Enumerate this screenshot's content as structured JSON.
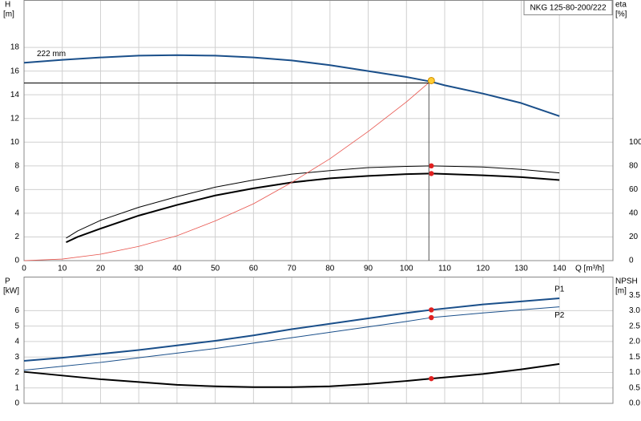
{
  "chart_data": [
    {
      "type": "line",
      "title": "NKG 125-80-200/222",
      "y_label": "H",
      "y_unit": "[m]",
      "y2_label": "eta",
      "y2_unit": "[%]",
      "x_label": "Q [m³/h]",
      "xlim": [
        0,
        154
      ],
      "xticks": [
        0,
        10,
        20,
        30,
        40,
        50,
        60,
        70,
        80,
        90,
        100,
        110,
        120,
        130,
        140
      ],
      "ylim": [
        0,
        22
      ],
      "yticks": [
        0,
        2,
        4,
        6,
        8,
        10,
        12,
        14,
        16,
        18
      ],
      "y2lim": [
        0,
        220
      ],
      "y2ticks": [
        0,
        20,
        40,
        60,
        80,
        100
      ],
      "grid": true,
      "series": [
        {
          "name": "222 mm",
          "color": "#1a4f8a",
          "width": 2,
          "label_at": "start",
          "label_side": "above",
          "x": [
            0,
            10,
            20,
            30,
            40,
            50,
            60,
            70,
            80,
            90,
            100,
            106.5,
            110,
            120,
            130,
            140
          ],
          "values": [
            16.7,
            16.95,
            17.15,
            17.3,
            17.35,
            17.3,
            17.15,
            16.9,
            16.5,
            16.0,
            15.5,
            15.1,
            14.8,
            14.1,
            13.3,
            12.2
          ]
        },
        {
          "color": "#000000",
          "width": 1,
          "axis": "y2",
          "x": [
            11,
            14,
            20,
            30,
            40,
            50,
            60,
            70,
            80,
            90,
            100,
            106.5,
            120,
            130,
            140
          ],
          "values": [
            19,
            25,
            34,
            45,
            54,
            62,
            68,
            73,
            76,
            78.5,
            79.5,
            80,
            79,
            77,
            74
          ]
        },
        {
          "color": "#000000",
          "width": 2,
          "axis": "y2",
          "x": [
            11,
            14,
            20,
            30,
            40,
            50,
            60,
            70,
            80,
            90,
            100,
            106.5,
            120,
            130,
            140
          ],
          "values": [
            15.5,
            20,
            27,
            38,
            47,
            55,
            61,
            66,
            69.5,
            71.5,
            73,
            73.5,
            72,
            70.5,
            68
          ]
        },
        {
          "color": "#e8554e",
          "width": 0.8,
          "x": [
            0,
            10,
            20,
            30,
            40,
            50,
            60,
            70,
            80,
            90,
            100,
            106.5
          ],
          "values": [
            0,
            0.13,
            0.54,
            1.2,
            2.1,
            3.35,
            4.8,
            6.6,
            8.6,
            10.9,
            13.4,
            15.2
          ]
        },
        {
          "color": "#e02020",
          "marker": true,
          "axis": "y2",
          "x": [
            106.5
          ],
          "values": [
            80
          ]
        },
        {
          "color": "#e02020",
          "marker": true,
          "axis": "y2",
          "x": [
            106.5
          ],
          "values": [
            73.5
          ]
        },
        {
          "color": "#ffcc33",
          "marker": true,
          "duty_point": true,
          "x": [
            106.5
          ],
          "values": [
            15.2
          ]
        }
      ]
    },
    {
      "type": "line",
      "y_label": "P",
      "y_unit": "[kW]",
      "y2_label": "NPSH",
      "y2_unit": "[m]",
      "xlim": [
        0,
        154
      ],
      "ylim": [
        0,
        8.2
      ],
      "yticks": [
        0,
        1,
        2,
        3,
        4,
        5,
        6
      ],
      "y2lim": [
        0,
        4.1
      ],
      "y2ticks": [
        {
          "value": 0,
          "label": "0.0"
        },
        0.5,
        {
          "value": 1,
          "label": "1.0"
        },
        1.5,
        {
          "value": 2,
          "label": "2.0"
        },
        2.5,
        {
          "value": 3,
          "label": "3.0"
        },
        3.5
      ],
      "grid": true,
      "series": [
        {
          "name": "P1",
          "color": "#1a4f8a",
          "width": 2,
          "label_at": "end",
          "label_side": "above",
          "x": [
            0,
            10,
            20,
            30,
            40,
            50,
            60,
            70,
            80,
            90,
            100,
            106.5,
            120,
            130,
            140
          ],
          "values": [
            2.75,
            2.95,
            3.2,
            3.45,
            3.75,
            4.05,
            4.4,
            4.8,
            5.15,
            5.5,
            5.85,
            6.05,
            6.4,
            6.6,
            6.8
          ]
        },
        {
          "name": "P2",
          "color": "#1a4f8a",
          "width": 1,
          "label_at": "end",
          "label_side": "below",
          "x": [
            0,
            10,
            20,
            30,
            40,
            50,
            60,
            70,
            80,
            90,
            100,
            106.5,
            120,
            130,
            140
          ],
          "values": [
            2.15,
            2.4,
            2.65,
            2.95,
            3.25,
            3.55,
            3.9,
            4.25,
            4.6,
            4.95,
            5.3,
            5.55,
            5.85,
            6.05,
            6.25
          ]
        },
        {
          "color": "#000000",
          "width": 2,
          "axis": "y2",
          "x": [
            0,
            20,
            40,
            50,
            60,
            70,
            80,
            90,
            100,
            106.5,
            120,
            130,
            140
          ],
          "values": [
            1.02,
            0.78,
            0.6,
            0.55,
            0.525,
            0.525,
            0.55,
            0.625,
            0.725,
            0.8,
            0.95,
            1.1,
            1.275
          ]
        },
        {
          "color": "#e02020",
          "marker": true,
          "x": [
            106.5
          ],
          "values": [
            6.05
          ]
        },
        {
          "color": "#e02020",
          "marker": true,
          "x": [
            106.5
          ],
          "values": [
            5.55
          ]
        },
        {
          "color": "#e02020",
          "marker": true,
          "axis": "y2",
          "x": [
            106.5
          ],
          "values": [
            0.8
          ]
        }
      ]
    }
  ]
}
